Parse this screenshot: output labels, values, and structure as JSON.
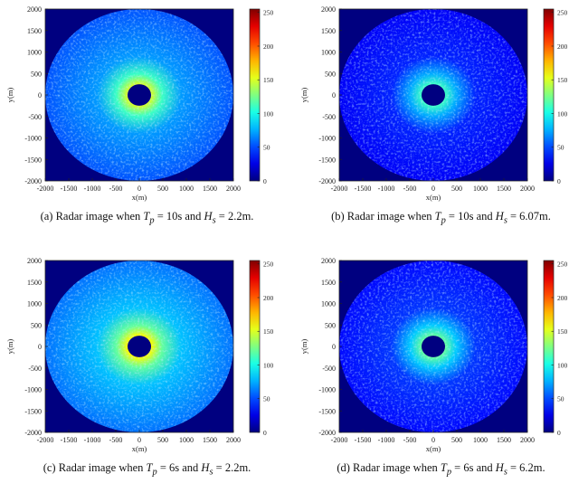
{
  "figure": {
    "panels": [
      {
        "id": "a",
        "caption": {
          "prefix": "(a)",
          "text_before": "Radar image when",
          "tp_value": "= 10s",
          "connector": "and",
          "hs_value": "= 2.2m."
        },
        "chart_data": {
          "type": "heatmap",
          "xlabel": "x(m)",
          "ylabel": "y(m)",
          "xlim": [
            -2000,
            2000
          ],
          "ylim": [
            -2000,
            2000
          ],
          "x_ticks": [
            "-2000",
            "-1500",
            "-1000",
            "-500",
            "0",
            "500",
            "1000",
            "1500",
            "2000"
          ],
          "y_ticks": [
            "2000",
            "1500",
            "1000",
            "500",
            "0",
            "-500",
            "-1000",
            "-1500",
            "-2000"
          ],
          "colorbar": {
            "min": 0,
            "max": 255,
            "ticks": [
              "250",
              "200",
              "150",
              "100",
              "50",
              "0"
            ]
          },
          "display_radius_m": 2000,
          "blind_radius_m": 250,
          "mean_intensity": 70,
          "near_range_peak": 150
        }
      },
      {
        "id": "b",
        "caption": {
          "prefix": "(b)",
          "text_before": "Radar image when",
          "tp_value": "= 10s",
          "connector": "and",
          "hs_value": "= 6.07m."
        },
        "chart_data": {
          "type": "heatmap",
          "xlabel": "x(m)",
          "ylabel": "y(m)",
          "xlim": [
            -2000,
            2000
          ],
          "ylim": [
            -2000,
            2000
          ],
          "x_ticks": [
            "-2000",
            "-1500",
            "-1000",
            "-500",
            "0",
            "500",
            "1000",
            "1500",
            "2000"
          ],
          "y_ticks": [
            "2000",
            "1500",
            "1000",
            "500",
            "0",
            "-500",
            "-1000",
            "-1500",
            "-2000"
          ],
          "colorbar": {
            "min": 0,
            "max": 255,
            "ticks": [
              "250",
              "200",
              "150",
              "100",
              "50",
              "0"
            ]
          },
          "display_radius_m": 2000,
          "blind_radius_m": 250,
          "mean_intensity": 40,
          "near_range_peak": 110
        }
      },
      {
        "id": "c",
        "caption": {
          "prefix": "(c)",
          "text_before": "Radar image when",
          "tp_value": "= 6s",
          "connector": "and",
          "hs_value": "= 2.2m."
        },
        "chart_data": {
          "type": "heatmap",
          "xlabel": "x(m)",
          "ylabel": "y(m)",
          "xlim": [
            -2000,
            2000
          ],
          "ylim": [
            -2000,
            2000
          ],
          "x_ticks": [
            "-2000",
            "-1500",
            "-1000",
            "-500",
            "0",
            "500",
            "1000",
            "1500",
            "2000"
          ],
          "y_ticks": [
            "2000",
            "1500",
            "1000",
            "500",
            "0",
            "-500",
            "-1000",
            "-1500",
            "-2000"
          ],
          "colorbar": {
            "min": 0,
            "max": 255,
            "ticks": [
              "250",
              "200",
              "150",
              "100",
              "50",
              "0"
            ]
          },
          "display_radius_m": 2000,
          "blind_radius_m": 250,
          "mean_intensity": 80,
          "near_range_peak": 160
        }
      },
      {
        "id": "d",
        "caption": {
          "prefix": "(d)",
          "text_before": "Radar image when",
          "tp_value": "= 6s",
          "connector": "and",
          "hs_value": "= 6.2m."
        },
        "chart_data": {
          "type": "heatmap",
          "xlabel": "x(m)",
          "ylabel": "y(m)",
          "xlim": [
            -2000,
            2000
          ],
          "ylim": [
            -2000,
            2000
          ],
          "x_ticks": [
            "-2000",
            "-1500",
            "-1000",
            "-500",
            "0",
            "500",
            "1000",
            "1500",
            "2000"
          ],
          "y_ticks": [
            "2000",
            "1500",
            "1000",
            "500",
            "0",
            "-500",
            "-1000",
            "-1500",
            "-2000"
          ],
          "colorbar": {
            "min": 0,
            "max": 255,
            "ticks": [
              "250",
              "200",
              "150",
              "100",
              "50",
              "0"
            ]
          },
          "display_radius_m": 2000,
          "blind_radius_m": 250,
          "mean_intensity": 45,
          "near_range_peak": 120
        }
      }
    ],
    "colors": {
      "background": "#000080",
      "field": "#1a3fd8",
      "colormap": "jet"
    }
  }
}
